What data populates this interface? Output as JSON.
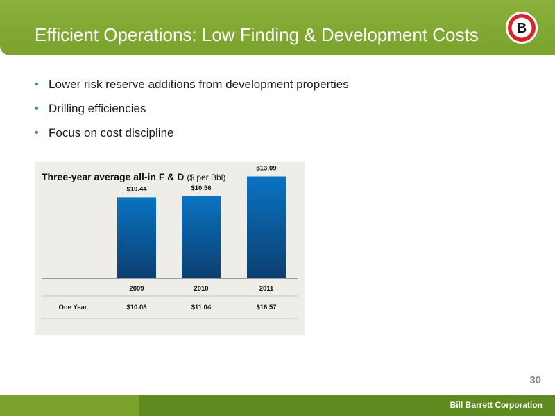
{
  "slide": {
    "title": "Efficient Operations: Low Finding & Development Costs",
    "page_number": "30",
    "company": "Bill Barrett Corporation",
    "logo_letter": "B",
    "accent_color": "#7aa22c",
    "bullets": [
      "Lower risk reserve additions from development properties",
      "Drilling efficiencies",
      "Focus on cost discipline"
    ]
  },
  "chart_data": {
    "type": "bar",
    "title": "Three-year average all-in F & D",
    "unit_label": "($ per Bbl)",
    "categories": [
      "2009",
      "2010",
      "2011"
    ],
    "values": [
      10.44,
      10.56,
      13.09
    ],
    "value_labels": [
      "$10.44",
      "$10.56",
      "$13.09"
    ],
    "ylim": [
      0,
      15
    ],
    "bar_color": "#0b6bb5",
    "table": {
      "row_label": "One Year",
      "values": [
        "$10.08",
        "$11.04",
        "$16.57"
      ]
    }
  }
}
